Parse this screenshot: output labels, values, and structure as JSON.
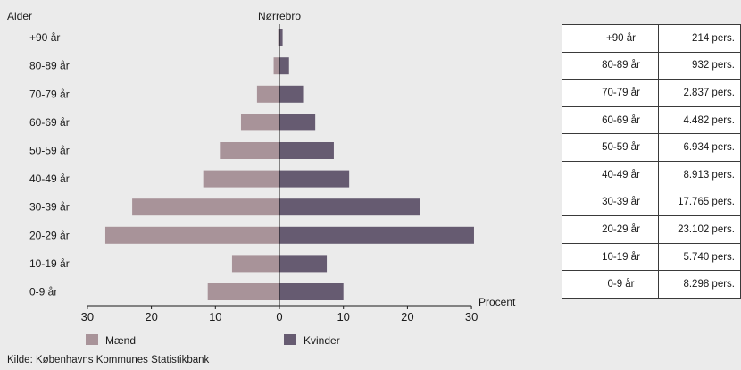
{
  "header": {
    "clipped_title_visible": false
  },
  "chart_data": {
    "type": "bar",
    "orientation": "horizontal",
    "layout": "population-pyramid",
    "subtitle": "Nørrebro",
    "ylabel": "Alder",
    "xlabel": "Procent",
    "xlim": [
      -30,
      30
    ],
    "x_ticks": [
      -30,
      -20,
      -10,
      0,
      10,
      20,
      30
    ],
    "x_tick_labels": [
      "30",
      "20",
      "10",
      "0",
      "10",
      "20",
      "30"
    ],
    "categories": [
      "0-9 år",
      "10-19 år",
      "20-29 år",
      "30-39 år",
      "40-49 år",
      "50-59 år",
      "60-69 år",
      "70-79 år",
      "80-89 år",
      "+90 år"
    ],
    "series": [
      {
        "name": "Mænd",
        "color": "#a89399",
        "values": [
          11.2,
          7.4,
          27.2,
          23.0,
          11.9,
          9.3,
          6.0,
          3.5,
          0.9,
          0.2
        ]
      },
      {
        "name": "Kvinder",
        "color": "#665b71",
        "values": [
          10.0,
          7.4,
          30.4,
          21.9,
          10.9,
          8.5,
          5.6,
          3.7,
          1.5,
          0.5
        ]
      }
    ],
    "legend_position": "bottom",
    "grid": false
  },
  "table": {
    "rows": [
      {
        "age": "+90 år",
        "persons": "214 pers."
      },
      {
        "age": "80-89 år",
        "persons": "932 pers."
      },
      {
        "age": "70-79 år",
        "persons": "2.837 pers."
      },
      {
        "age": "60-69 år",
        "persons": "4.482 pers."
      },
      {
        "age": "50-59 år",
        "persons": "6.934 pers."
      },
      {
        "age": "40-49 år",
        "persons": "8.913 pers."
      },
      {
        "age": "30-39 år",
        "persons": "17.765 pers."
      },
      {
        "age": "20-29 år",
        "persons": "23.102 pers."
      },
      {
        "age": "10-19 år",
        "persons": "5.740 pers."
      },
      {
        "age": "0-9 år",
        "persons": "8.298 pers."
      }
    ]
  },
  "footer": {
    "source": "Kilde: Københavns Kommunes Statistikbank"
  }
}
